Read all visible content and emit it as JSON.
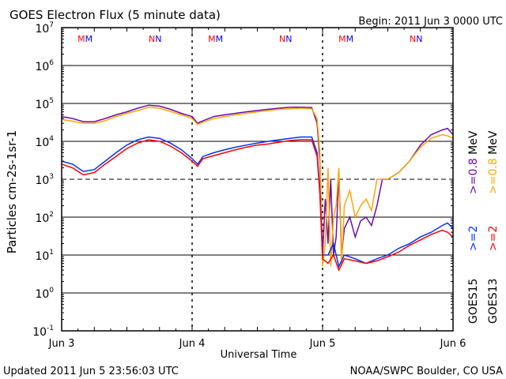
{
  "chart_data": {
    "type": "line",
    "title": "GOES Electron Flux (5 minute data)",
    "begin_label": "Begin: 2011 Jun 3 0000 UTC",
    "xlabel": "Universal Time",
    "ylabel": "Particles cm-2s-1sr-1",
    "y_scale": "log",
    "ylim": [
      0.1,
      10000000
    ],
    "xlim_hours": [
      0,
      72
    ],
    "x_ticks": [
      {
        "hour": 0,
        "label": "Jun 3"
      },
      {
        "hour": 24,
        "label": "Jun 4"
      },
      {
        "hour": 48,
        "label": "Jun 5"
      },
      {
        "hour": 72,
        "label": "Jun 6"
      }
    ],
    "y_ticks": [
      {
        "exp": 7
      },
      {
        "exp": 6
      },
      {
        "exp": 5
      },
      {
        "exp": 4
      },
      {
        "exp": 3
      },
      {
        "exp": 2
      },
      {
        "exp": 1
      },
      {
        "exp": 0
      },
      {
        "exp": -1
      }
    ],
    "threshold_line": 1000,
    "grid": true,
    "legend_placement": "right",
    "markers": [
      {
        "hour": 4.3,
        "label": "M"
      },
      {
        "hour": 17.2,
        "label": "N"
      },
      {
        "hour": 28.3,
        "label": "M"
      },
      {
        "hour": 41.2,
        "label": "N"
      },
      {
        "hour": 52.3,
        "label": "M"
      },
      {
        "hour": 65.2,
        "label": "N"
      }
    ],
    "marker_colors": [
      "#ff0000",
      "#0000ff"
    ],
    "series": [
      {
        "name": "GOES15 >=0.8 MeV",
        "group": "GOES15",
        "energy": ">=0.8",
        "unit": "MeV",
        "color": "#6a0dad",
        "x": [
          0,
          2,
          4,
          6,
          8,
          10,
          12,
          14,
          16,
          18,
          20,
          22,
          24,
          25,
          26,
          28,
          30,
          32,
          34,
          36,
          38,
          40,
          42,
          44,
          46,
          47,
          47.5,
          48,
          48.5,
          49,
          49.5,
          50,
          50.5,
          51,
          51.5,
          52,
          53,
          54,
          55,
          56,
          57,
          58,
          59,
          60,
          62,
          64,
          66,
          68,
          70,
          71,
          72
        ],
        "y": [
          45000,
          40000,
          33000,
          33000,
          40000,
          50000,
          60000,
          75000,
          90000,
          85000,
          70000,
          55000,
          45000,
          30000,
          35000,
          45000,
          50000,
          55000,
          60000,
          65000,
          70000,
          75000,
          80000,
          80000,
          78000,
          30000,
          3000,
          10,
          300,
          20,
          1000,
          10,
          30,
          1500,
          10,
          50,
          100,
          30,
          80,
          100,
          60,
          200,
          1000,
          1000,
          1500,
          3000,
          8000,
          15000,
          20000,
          22000,
          15000
        ]
      },
      {
        "name": "GOES13 >=0.8 MeV",
        "group": "GOES13",
        "energy": ">=0.8",
        "unit": "MeV",
        "color": "#ffa500",
        "x": [
          0,
          2,
          4,
          6,
          8,
          10,
          12,
          14,
          16,
          18,
          20,
          22,
          24,
          25,
          26,
          28,
          30,
          32,
          34,
          36,
          38,
          40,
          42,
          44,
          46,
          47,
          47.5,
          48,
          48.5,
          49,
          49.5,
          50,
          50.5,
          51,
          51.5,
          52,
          53,
          54,
          55,
          56,
          57,
          58,
          59,
          60,
          62,
          64,
          66,
          68,
          70,
          71,
          72
        ],
        "y": [
          38000,
          34000,
          30000,
          30000,
          35000,
          45000,
          55000,
          65000,
          80000,
          75000,
          62000,
          50000,
          40000,
          28000,
          32000,
          40000,
          45000,
          50000,
          55000,
          60000,
          65000,
          70000,
          72000,
          75000,
          72000,
          40000,
          5000,
          5,
          20,
          2000,
          5,
          100,
          200,
          2000,
          5,
          200,
          500,
          100,
          200,
          300,
          150,
          1000,
          1000,
          1000,
          1500,
          3000,
          7000,
          12000,
          15000,
          14000,
          12000
        ]
      },
      {
        "name": "GOES15 >=2 MeV",
        "group": "GOES15",
        "energy": ">=2",
        "unit": "MeV",
        "color": "#0033ff",
        "x": [
          0,
          2,
          4,
          6,
          8,
          10,
          12,
          14,
          16,
          18,
          20,
          22,
          24,
          25,
          26,
          28,
          30,
          32,
          34,
          36,
          38,
          40,
          42,
          44,
          46,
          47,
          47.5,
          48,
          49,
          50,
          51,
          52,
          54,
          56,
          58,
          60,
          62,
          64,
          66,
          68,
          70,
          71,
          72
        ],
        "y": [
          3000,
          2500,
          1600,
          1800,
          3000,
          5000,
          8000,
          11000,
          13000,
          12000,
          9000,
          6000,
          3500,
          2500,
          4000,
          5000,
          6000,
          7000,
          8000,
          9000,
          10000,
          11000,
          12000,
          13000,
          13000,
          5000,
          500,
          10,
          10,
          20,
          5,
          10,
          8,
          6,
          8,
          10,
          15,
          20,
          30,
          40,
          60,
          70,
          50
        ]
      },
      {
        "name": "GOES13 >=2 MeV",
        "group": "GOES13",
        "energy": ">=2",
        "unit": "MeV",
        "color": "#ff0000",
        "x": [
          0,
          2,
          4,
          6,
          8,
          10,
          12,
          14,
          16,
          18,
          20,
          22,
          24,
          25,
          26,
          28,
          30,
          32,
          34,
          36,
          38,
          40,
          42,
          44,
          46,
          47,
          47.5,
          48,
          49,
          50,
          51,
          52,
          54,
          56,
          58,
          60,
          62,
          64,
          66,
          68,
          70,
          71,
          72
        ],
        "y": [
          2500,
          2000,
          1300,
          1500,
          2500,
          4000,
          6500,
          9000,
          11000,
          10000,
          7500,
          5000,
          3000,
          2200,
          3500,
          4200,
          5000,
          6000,
          7000,
          8000,
          8500,
          9500,
          10500,
          11000,
          11000,
          4000,
          400,
          8,
          6,
          10,
          4,
          8,
          7,
          6,
          7,
          9,
          12,
          18,
          25,
          35,
          45,
          40,
          30
        ]
      }
    ]
  },
  "footer": {
    "updated": "Updated 2011 Jun  5 23:56:03 UTC",
    "credit": "NOAA/SWPC Boulder, CO USA"
  }
}
